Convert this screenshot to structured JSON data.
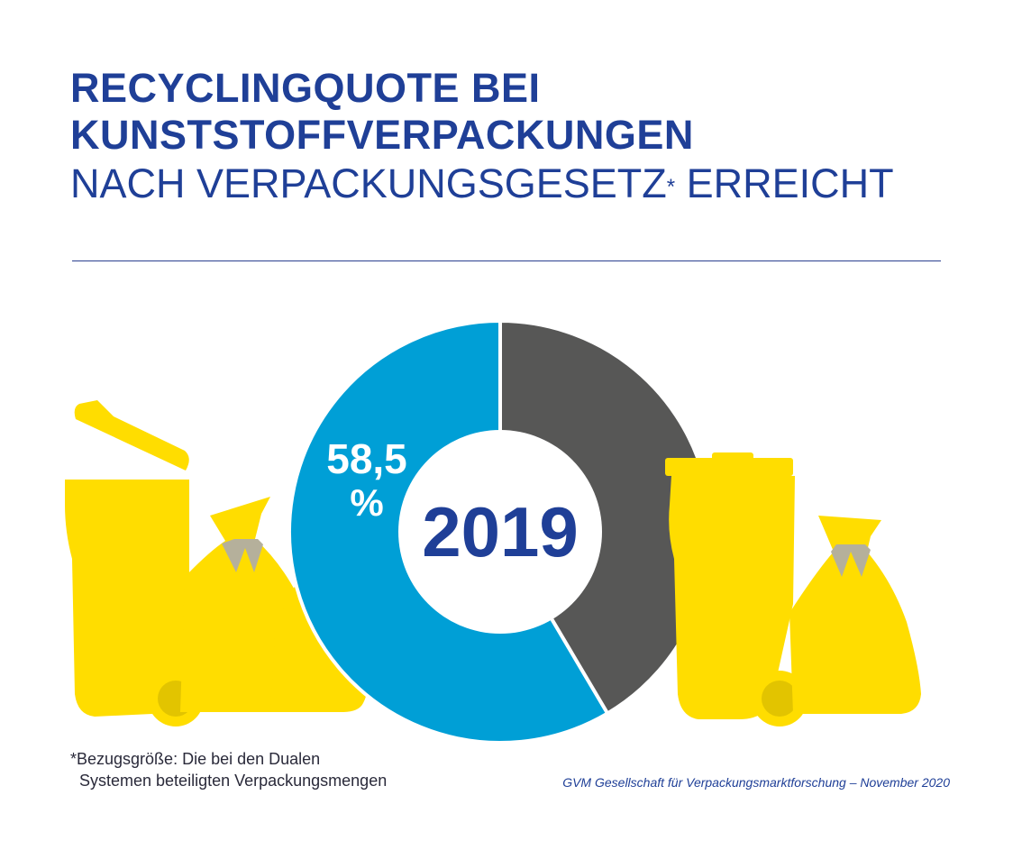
{
  "header": {
    "title_line1": "RECYCLINGQUOTE BEI",
    "title_line2": "KUNSTSTOFFVERPACKUNGEN",
    "subtitle_part1": "NACH VERPACKUNGSGESETZ",
    "subtitle_asterisk": "*",
    "subtitle_part2": " ERREICHT"
  },
  "colors": {
    "title": "#1f3f97",
    "recycled": "#009fd6",
    "rest": "#575756",
    "bin_yellow": "#ffdd00",
    "wheel": "#e2c400",
    "knot": "#b5b09b"
  },
  "chart_data": {
    "type": "pie",
    "center_label": "2019",
    "slices": [
      {
        "value": 58.5,
        "label_value": "58,5",
        "label_unit": "%",
        "color": "#009fd6"
      },
      {
        "value": 41.5,
        "color": "#575756"
      }
    ]
  },
  "icons": [
    "yellow-bin-with-lid-icon",
    "yellow-bag-icon",
    "yellow-bin-icon"
  ],
  "footnote": {
    "line1": "*Bezugsgröße: Die bei den Dualen",
    "line2": "Systemen beteiligten Verpackungsmengen"
  },
  "source": "GVM Gesellschaft für Verpackungsmarktforschung – November 2020"
}
